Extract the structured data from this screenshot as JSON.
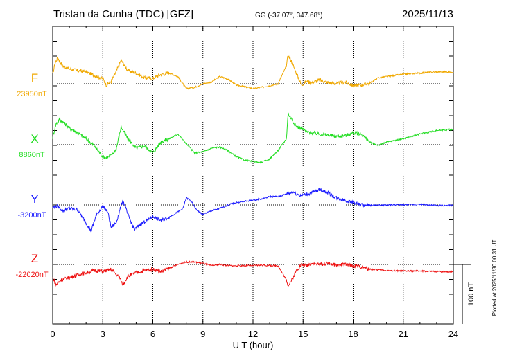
{
  "header": {
    "station": "Tristan da Cunha (TDC)  [GFZ]",
    "coords": "GG (-37.07°, 347.68°)",
    "date": "2025/11/13"
  },
  "footer": {
    "plotted": "Plotted at 2025/11/30 00:31  UT"
  },
  "chart_data": {
    "type": "line",
    "title": "Tristan da Cunha (TDC)  [GFZ]",
    "xlabel": "U T (hour)",
    "xlim": [
      0,
      24
    ],
    "xticks": [
      "0",
      "3",
      "6",
      "9",
      "12",
      "15",
      "18",
      "21",
      "24"
    ],
    "grid": true,
    "scale_bar": {
      "label": "100 nT",
      "value_nT": 100
    },
    "series": [
      {
        "name": "F",
        "baseline_label": "23950nT",
        "color": "#f0a800",
        "x": [
          0,
          0.15,
          0.3,
          0.6,
          1,
          1.5,
          2,
          2.5,
          3,
          3.2,
          3.5,
          3.8,
          4.1,
          4.5,
          5,
          5.5,
          6,
          6.5,
          7,
          7.5,
          8,
          8.5,
          9,
          9.5,
          10,
          10.5,
          11,
          11.5,
          12,
          12.5,
          13,
          13.5,
          14,
          14.1,
          14.3,
          14.6,
          14.9,
          15.2,
          15.5,
          16,
          16.5,
          17,
          17.5,
          18,
          18.5,
          19,
          19.5,
          20,
          21,
          22,
          23,
          24
        ],
        "y": [
          16,
          35,
          44,
          30,
          25,
          22,
          20,
          14,
          9,
          -2,
          4,
          20,
          40,
          22,
          18,
          10,
          9,
          16,
          18,
          12,
          -8,
          -6,
          0,
          3,
          12,
          8,
          -2,
          -5,
          -8,
          -6,
          -3,
          0,
          30,
          48,
          38,
          18,
          -2,
          4,
          2,
          6,
          2,
          0,
          3,
          -3,
          -2,
          1,
          10,
          12,
          16,
          18,
          20,
          20
        ]
      },
      {
        "name": "X",
        "baseline_label": "8860nT",
        "color": "#22dd22",
        "x": [
          0,
          0.2,
          0.4,
          0.7,
          1,
          1.5,
          2,
          2.5,
          3,
          3.2,
          3.5,
          3.8,
          4.1,
          4.5,
          5,
          5.5,
          6,
          6.5,
          7,
          7.5,
          8,
          8.5,
          9,
          9.5,
          10,
          10.5,
          11,
          11.5,
          12,
          12.5,
          13,
          13.5,
          14,
          14.1,
          14.3,
          14.6,
          14.9,
          15.2,
          15.5,
          16,
          16.5,
          17,
          17.5,
          18,
          18.5,
          19,
          19.5,
          20,
          21,
          22,
          23,
          24
        ],
        "y": [
          12,
          35,
          42,
          36,
          28,
          20,
          10,
          -2,
          -20,
          -22,
          -18,
          -8,
          30,
          10,
          -6,
          -2,
          -14,
          5,
          10,
          18,
          2,
          -14,
          -12,
          -6,
          -4,
          -10,
          -20,
          -26,
          -28,
          -30,
          -24,
          -10,
          10,
          52,
          44,
          30,
          28,
          22,
          20,
          18,
          16,
          14,
          15,
          20,
          18,
          4,
          -1,
          4,
          10,
          18,
          24,
          26
        ]
      },
      {
        "name": "Y",
        "baseline_label": "-3200nT",
        "color": "#1c1cff",
        "x": [
          0,
          0.3,
          0.6,
          1,
          1.5,
          2,
          2.3,
          2.6,
          3,
          3.3,
          3.5,
          3.8,
          4.2,
          4.5,
          4.9,
          5.2,
          5.5,
          6,
          6.5,
          7,
          7.5,
          7.8,
          8,
          8.3,
          8.6,
          9,
          9.5,
          10,
          10.5,
          11,
          11.5,
          12,
          12.5,
          13,
          13.5,
          14,
          14.4,
          14.8,
          15.2,
          15.5,
          16,
          16.5,
          17,
          17.5,
          18,
          18.5,
          19,
          20,
          21,
          22,
          23,
          24
        ],
        "y": [
          -4,
          -2,
          -10,
          -6,
          -8,
          -30,
          -44,
          -18,
          -2,
          -12,
          -38,
          -30,
          8,
          -16,
          -42,
          -34,
          -28,
          -20,
          -26,
          -20,
          -12,
          -6,
          12,
          6,
          -8,
          -16,
          -10,
          -6,
          0,
          4,
          6,
          8,
          10,
          14,
          14,
          18,
          22,
          16,
          18,
          20,
          26,
          20,
          12,
          8,
          4,
          0,
          -1,
          0,
          0,
          1,
          -1,
          -1
        ]
      },
      {
        "name": "Z",
        "baseline_label": "-22020nT",
        "color": "#ee1111",
        "x": [
          0,
          0.2,
          0.5,
          1,
          1.5,
          2,
          2.5,
          3,
          3.5,
          4,
          4.2,
          4.5,
          5,
          5.5,
          6,
          6.5,
          7,
          7.5,
          8,
          8.5,
          9,
          9.5,
          10,
          10.5,
          11,
          11.5,
          12,
          12.5,
          13,
          13.5,
          14,
          14.1,
          14.3,
          14.6,
          14.9,
          15.2,
          15.5,
          16,
          16.5,
          17,
          17.5,
          18,
          18.5,
          19,
          20,
          21,
          22,
          23,
          24
        ],
        "y": [
          -22,
          -34,
          -26,
          -22,
          -18,
          -14,
          -10,
          -12,
          -8,
          -22,
          -34,
          -20,
          -14,
          -10,
          -8,
          -12,
          -6,
          0,
          4,
          4,
          2,
          -2,
          0,
          -2,
          -2,
          -2,
          -2,
          -1,
          -2,
          -2,
          -26,
          -34,
          -28,
          -10,
          0,
          -2,
          2,
          0,
          2,
          -1,
          0,
          -2,
          -4,
          -8,
          -10,
          -11,
          -11,
          -12,
          -12
        ]
      }
    ]
  }
}
